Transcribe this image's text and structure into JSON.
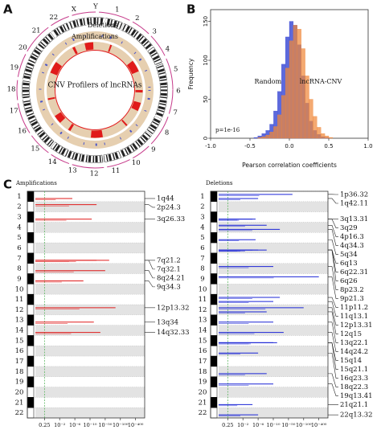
{
  "panel_labels": [
    "A",
    "B",
    "C"
  ],
  "chart_data": [
    {
      "type": "circos",
      "chromosomes": [
        "1",
        "2",
        "3",
        "4",
        "5",
        "6",
        "7",
        "8",
        "9",
        "10",
        "11",
        "12",
        "13",
        "14",
        "15",
        "16",
        "17",
        "18",
        "19",
        "20",
        "21",
        "22",
        "X",
        "Y"
      ],
      "track_labels": [
        "Deletions",
        "Amplifications"
      ],
      "center_text": "CNV Profilers of lncRNAs"
    },
    {
      "type": "histogram",
      "xlabel": "Pearson correlation coefficients",
      "ylabel": "Frequency",
      "bins": [
        -0.45,
        -0.4,
        -0.35,
        -0.3,
        -0.25,
        -0.2,
        -0.15,
        -0.1,
        -0.05,
        0,
        0.05,
        0.1,
        0.15,
        0.2,
        0.25,
        0.3,
        0.35,
        0.4,
        0.45,
        0.5,
        0.55,
        0.6
      ],
      "series": [
        {
          "name": "Random",
          "color": "#3f4fd6",
          "values": [
            1,
            3,
            6,
            10,
            18,
            35,
            60,
            95,
            130,
            150,
            145,
            120,
            80,
            45,
            22,
            10,
            5,
            2,
            1,
            0,
            0
          ]
        },
        {
          "name": "lncRNA-CNV",
          "color": "#f0883a",
          "values": [
            0,
            1,
            2,
            4,
            8,
            15,
            30,
            55,
            90,
            125,
            145,
            140,
            115,
            80,
            50,
            28,
            14,
            6,
            3,
            1,
            0
          ]
        }
      ],
      "annotation": "p=1e-16",
      "xlim": [
        -1,
        1
      ],
      "xticks": [
        {
          "value": -1,
          "label": "-1.0"
        },
        {
          "value": -0.5,
          "label": "-0.5"
        },
        {
          "value": 0,
          "label": "0.0"
        },
        {
          "value": 0.5,
          "label": "0.5"
        },
        {
          "value": 1,
          "label": "1.0"
        }
      ],
      "ylim": [
        0,
        165
      ],
      "yticks": [
        0,
        50,
        100,
        150
      ]
    },
    {
      "type": "genome",
      "title": "Amplifications",
      "color": "#e01b1b",
      "chromosomes": [
        "1",
        "2",
        "3",
        "4",
        "5",
        "6",
        "7",
        "8",
        "9",
        "10",
        "11",
        "12",
        "13",
        "14",
        "15",
        "16",
        "17",
        "18",
        "19",
        "20",
        "21",
        "22"
      ],
      "peaks": [
        {
          "band": "1q44",
          "value": 5
        },
        {
          "band": "2p24.3",
          "value": 20
        },
        {
          "band": "3q26.33",
          "value": 12
        },
        {
          "band": "7q21.2",
          "value": 60
        },
        {
          "band": "7q32.1",
          "value": 20
        },
        {
          "band": "8q24.21",
          "value": 50
        },
        {
          "band": "9q34.3",
          "value": 8
        },
        {
          "band": "12p13.32",
          "value": 80
        },
        {
          "band": "13q34",
          "value": 15
        },
        {
          "band": "14q32.33",
          "value": 30
        }
      ],
      "xscale": "log",
      "xlim": [
        0.5,
        500
      ],
      "xticks": [
        {
          "value": 0.602,
          "label": "0.25"
        },
        {
          "value": 2,
          "label": "10⁻²"
        },
        {
          "value": 6,
          "label": "10⁻⁶"
        },
        {
          "value": 10,
          "label": "10⁻¹⁰"
        },
        {
          "value": 50,
          "label": "10⁻⁵⁰"
        },
        {
          "value": 100,
          "label": "10⁻¹⁰⁰"
        },
        {
          "value": 400,
          "label": "10⁻⁴⁰⁰"
        }
      ]
    },
    {
      "type": "genome",
      "title": "Deletions",
      "color": "#1b24d6",
      "chromosomes": [
        "1",
        "2",
        "3",
        "4",
        "5",
        "6",
        "7",
        "8",
        "9",
        "10",
        "11",
        "12",
        "13",
        "14",
        "15",
        "16",
        "17",
        "18",
        "19",
        "20",
        "21",
        "22"
      ],
      "peaks": [
        {
          "band": "1p36.32",
          "value": 60
        },
        {
          "band": "1q42.11",
          "value": 6
        },
        {
          "band": "3q13.31",
          "value": 4
        },
        {
          "band": "3q29",
          "value": 5
        },
        {
          "band": "4p16.3",
          "value": 8
        },
        {
          "band": "4q34.3",
          "value": 20
        },
        {
          "band": "5q34",
          "value": 5
        },
        {
          "band": "6q13",
          "value": 4
        },
        {
          "band": "6q22.31",
          "value": 6
        },
        {
          "band": "6q26",
          "value": 8
        },
        {
          "band": "8p23.2",
          "value": 10
        },
        {
          "band": "9p21.3",
          "value": 400
        },
        {
          "band": "11p11.2",
          "value": 20
        },
        {
          "band": "11q13.1",
          "value": 10
        },
        {
          "band": "12p13.31",
          "value": 100
        },
        {
          "band": "12q15",
          "value": 8
        },
        {
          "band": "13q22.1",
          "value": 10
        },
        {
          "band": "14q24.2",
          "value": 30
        },
        {
          "band": "15q14",
          "value": 15
        },
        {
          "band": "15q21.1",
          "value": 10
        },
        {
          "band": "16q23.3",
          "value": 6
        },
        {
          "band": "18q22.3",
          "value": 8
        },
        {
          "band": "19q13.41",
          "value": 10
        },
        {
          "band": "21q21.1",
          "value": 4
        },
        {
          "band": "22q13.32",
          "value": 6
        }
      ],
      "xscale": "log",
      "xlim": [
        0.5,
        500
      ],
      "xticks": [
        {
          "value": 0.602,
          "label": "0.25"
        },
        {
          "value": 2,
          "label": "10⁻²"
        },
        {
          "value": 6,
          "label": "10⁻⁶"
        },
        {
          "value": 10,
          "label": "10⁻¹⁰"
        },
        {
          "value": 50,
          "label": "10⁻⁵⁰"
        },
        {
          "value": 100,
          "label": "10⁻¹⁰⁰"
        },
        {
          "value": 400,
          "label": "10⁻⁴⁰⁰"
        }
      ]
    }
  ]
}
